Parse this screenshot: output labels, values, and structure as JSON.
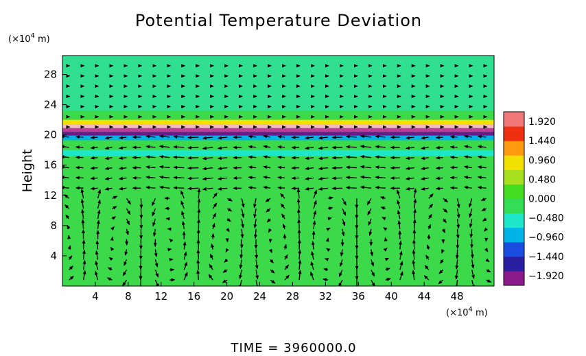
{
  "chart_data": {
    "type": "heatmap",
    "title": "Potential Temperature Deviation",
    "ylabel": "Height",
    "xunit": [
      "(×10",
      "4",
      " m)"
    ],
    "yunit": [
      "(×10",
      "4",
      " m)"
    ],
    "xlim": [
      0,
      52.5
    ],
    "ylim": [
      0,
      30.5
    ],
    "xticks": [
      "4",
      "8",
      "12",
      "16",
      "20",
      "24",
      "28",
      "32",
      "36",
      "40",
      "44",
      "48"
    ],
    "yticks": [
      "4",
      "8",
      "12",
      "16",
      "20",
      "24",
      "28"
    ],
    "colorbar": {
      "range": [
        -2.16,
        2.16
      ],
      "ticks": [
        "1.920",
        "1.440",
        "0.960",
        "0.480",
        "0.000",
        "−0.480",
        "−0.960",
        "−1.440",
        "−1.920"
      ],
      "colors": [
        "#8a1a8a",
        "#2a1fa0",
        "#1a4ee0",
        "#00b4e8",
        "#1ee6c8",
        "#33dd55",
        "#44dd22",
        "#a8e020",
        "#f2e000",
        "#ff9a10",
        "#ee3010",
        "#f07878"
      ]
    },
    "fields": {
      "background": "#3cd94a",
      "upper": "#30e090",
      "band_hot": "#f8b8c8",
      "band_cold": "#6a1a8a",
      "band_mid": "#c03a9a"
    },
    "footer": "TIME  =  3960000.0"
  }
}
